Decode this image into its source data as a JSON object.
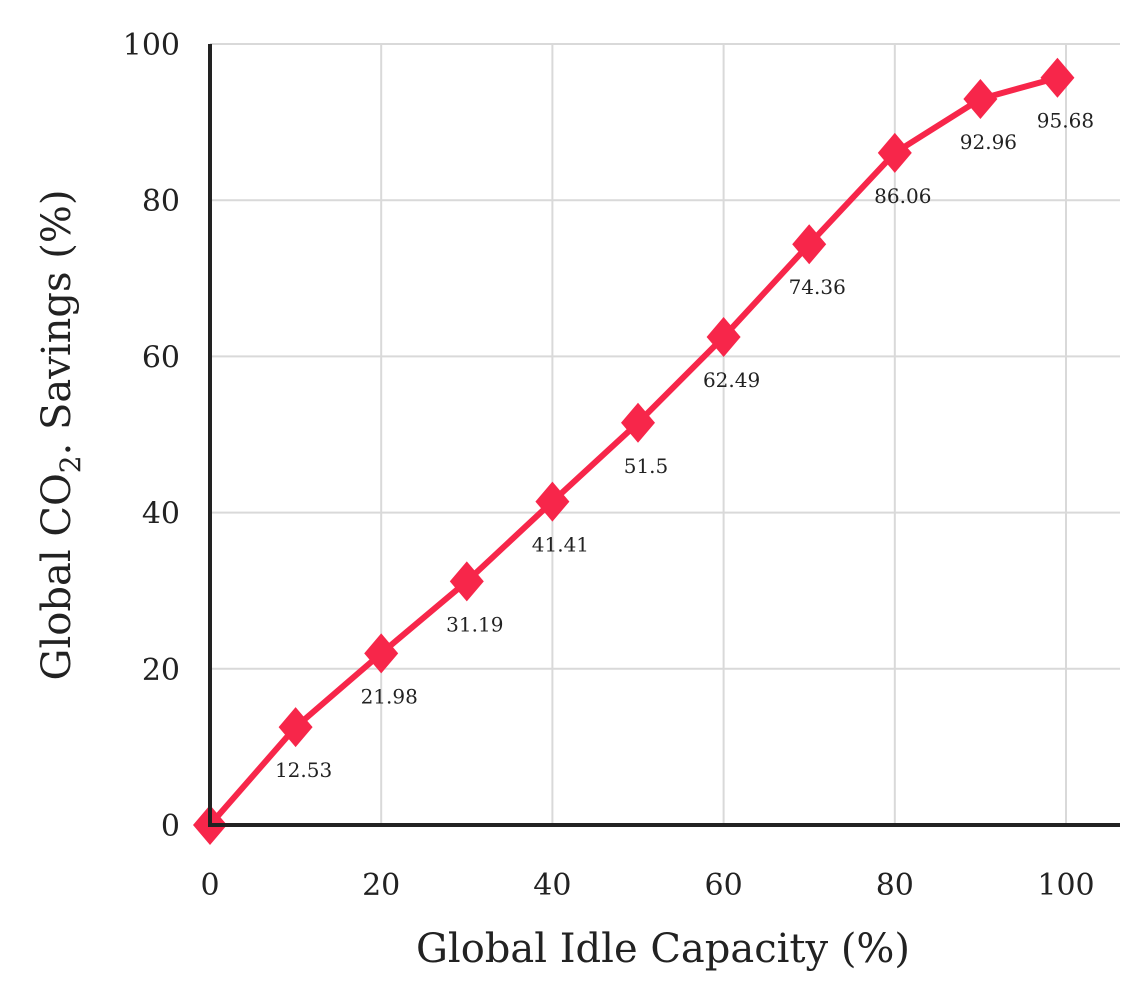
{
  "chart_data": {
    "type": "line",
    "xlabel": "Global Idle Capacity (%)",
    "ylabel_parts": [
      "Global CO",
      "2",
      ". Savings (%)"
    ],
    "xlim": [
      0,
      106
    ],
    "ylim": [
      0,
      100
    ],
    "xticks": [
      0,
      20,
      40,
      60,
      80,
      100
    ],
    "yticks": [
      0,
      20,
      40,
      60,
      80,
      100
    ],
    "x_tick_labels": [
      "0",
      "20",
      "40",
      "60",
      "80",
      "100"
    ],
    "y_tick_labels": [
      "0",
      "20",
      "40",
      "60",
      "80",
      "100"
    ],
    "grid": true,
    "color": "#f7264a",
    "marker": "diamond",
    "series": [
      {
        "x": [
          0,
          10,
          20,
          30,
          40,
          50,
          60,
          70,
          80,
          90,
          99
        ],
        "y": [
          0,
          12.53,
          21.98,
          31.19,
          41.41,
          51.5,
          62.49,
          74.36,
          86.06,
          92.96,
          95.68
        ],
        "labels": [
          "",
          "12.53",
          "21.98",
          "31.19",
          "41.41",
          "51.5",
          "62.49",
          "74.36",
          "86.06",
          "92.96",
          "95.68"
        ]
      }
    ]
  }
}
